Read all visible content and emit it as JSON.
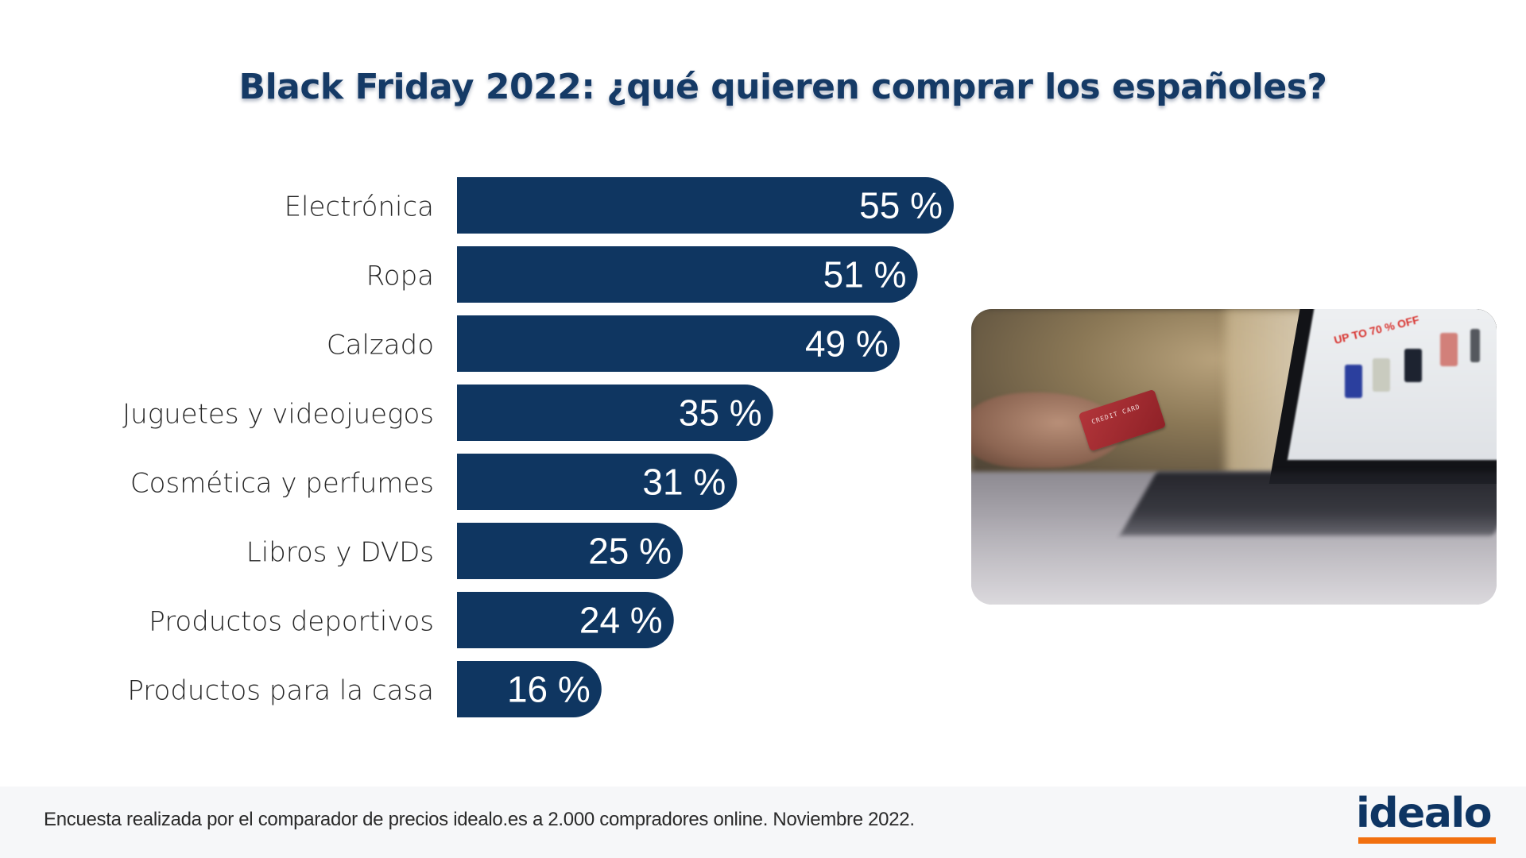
{
  "title": "Black Friday 2022: ¿qué quieren comprar los españoles?",
  "chart_data": {
    "type": "bar",
    "orientation": "horizontal",
    "title": "Black Friday 2022: ¿qué quieren comprar los españoles?",
    "xlabel": "",
    "ylabel": "",
    "unit": "%",
    "xlim": [
      0,
      55
    ],
    "grid": false,
    "legend": "none",
    "categories": [
      "Electrónica",
      "Ropa",
      "Calzado",
      "Juguetes y videojuegos",
      "Cosmética y perfumes",
      "Libros y DVDs",
      "Productos deportivos",
      "Productos para la casa"
    ],
    "values": [
      55,
      51,
      49,
      35,
      31,
      25,
      24,
      16
    ],
    "value_labels": [
      "55 %",
      "51 %",
      "49 %",
      "35 %",
      "31 %",
      "25 %",
      "24 %",
      "16 %"
    ],
    "colors": {
      "bar": "#0f3661",
      "value_text": "#ffffff",
      "category_text": "#262626"
    }
  },
  "photo": {
    "description": "hand holding a red credit card in front of a laptop showing an online shop",
    "screen_text": "UP TO 70 % OFF",
    "card_text": "CREDIT CARD"
  },
  "footer": {
    "note": "Encuesta realizada por el comparador de precios idealo.es a 2.000 compradores online. Noviembre 2022.",
    "logo_text": "idealo",
    "logo_color": "#0e3563",
    "logo_accent": "#f2700f"
  }
}
